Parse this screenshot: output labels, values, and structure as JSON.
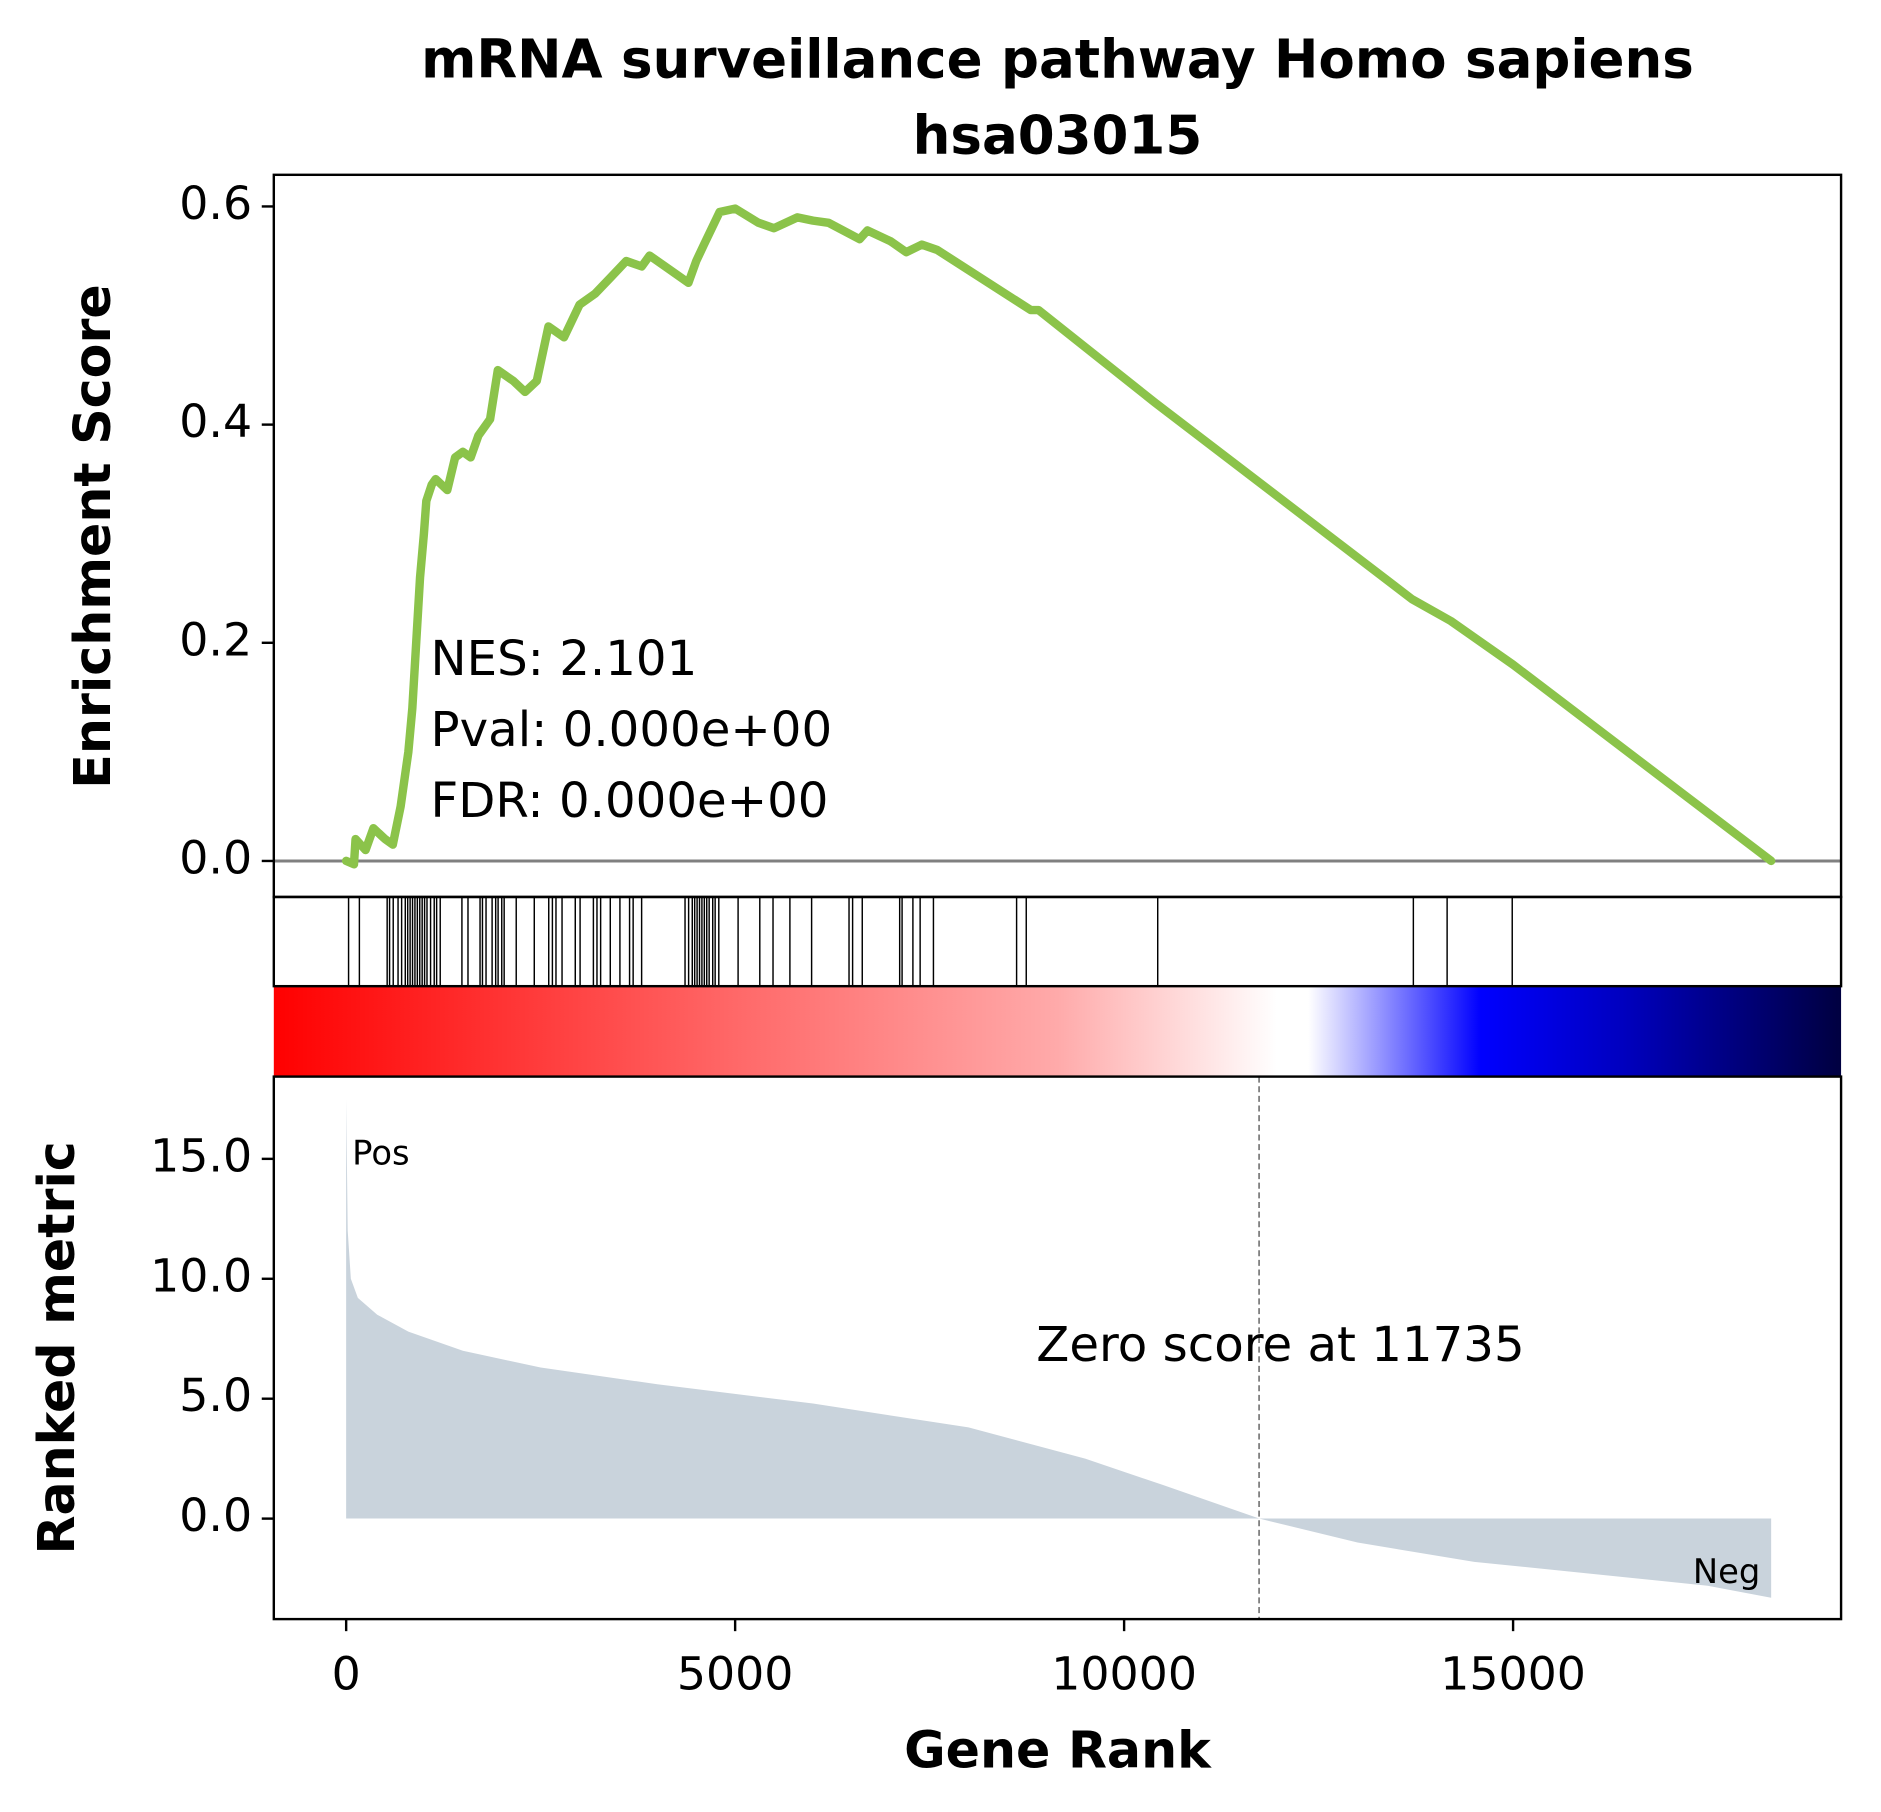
{
  "chart_data": [
    {
      "type": "line",
      "title": [
        "mRNA surveillance pathway Homo sapiens",
        "hsa03015"
      ],
      "ylabel": "Enrichment Score",
      "color": "#8bc34a",
      "x": [
        0,
        100,
        120,
        250,
        350,
        500,
        600,
        700,
        800,
        850,
        900,
        950,
        1000,
        1030,
        1100,
        1150,
        1300,
        1400,
        1500,
        1600,
        1700,
        1850,
        1950,
        2150,
        2300,
        2450,
        2600,
        2800,
        3000,
        3200,
        3400,
        3600,
        3800,
        3900,
        4100,
        4400,
        4500,
        4600,
        4800,
        5000,
        5300,
        5500,
        5800,
        6000,
        6200,
        6600,
        6700,
        7000,
        7200,
        7400,
        7600,
        8800,
        8900,
        10400,
        13700,
        14200,
        15000,
        18317
      ],
      "values": [
        0,
        -0.003,
        0.02,
        0.01,
        0.03,
        0.02,
        0.015,
        0.05,
        0.1,
        0.14,
        0.2,
        0.26,
        0.3,
        0.33,
        0.345,
        0.35,
        0.34,
        0.37,
        0.375,
        0.37,
        0.39,
        0.405,
        0.45,
        0.44,
        0.43,
        0.44,
        0.49,
        0.48,
        0.51,
        0.52,
        0.535,
        0.55,
        0.545,
        0.555,
        0.545,
        0.53,
        0.55,
        0.565,
        0.595,
        0.598,
        0.585,
        0.58,
        0.59,
        0.587,
        0.585,
        0.57,
        0.578,
        0.568,
        0.558,
        0.565,
        0.56,
        0.505,
        0.505,
        0.42,
        0.24,
        0.22,
        0.18,
        0
      ],
      "hline": 0,
      "annotations": [
        "NES: 2.101",
        "Pval: 0.000e+00",
        "FDR: 0.000e+00"
      ],
      "xlim": [
        -930,
        19216
      ],
      "ylim": [
        -0.033,
        0.629
      ],
      "yticks": [
        {
          "value": 0,
          "label": "0.0"
        },
        0.2,
        0.4,
        0.6
      ]
    },
    {
      "type": "hits",
      "x": [
        31,
        170,
        527,
        558,
        605,
        667,
        713,
        760,
        791,
        822,
        853,
        884,
        915,
        946,
        977,
        1008,
        1039,
        1085,
        1132,
        1163,
        1209,
        1488,
        1566,
        1721,
        1752,
        1798,
        1876,
        1922,
        1953,
        2000,
        2031,
        2186,
        2418,
        2604,
        2651,
        2697,
        2775,
        2945,
        3007,
        3178,
        3224,
        3271,
        3395,
        3519,
        3643,
        3689,
        3798,
        4356,
        4402,
        4449,
        4480,
        4511,
        4542,
        4573,
        4604,
        4635,
        4666,
        4712,
        4743,
        4790,
        5038,
        5317,
        5487,
        5704,
        5983,
        6464,
        6510,
        6634,
        7115,
        7146,
        7285,
        7378,
        7549,
        8618,
        8742,
        10432,
        13718,
        14152,
        14989
      ],
      "color": "#000000",
      "xlim": [
        -930,
        19216
      ]
    },
    {
      "type": "area",
      "ylabel": "Ranked metric",
      "xlabel": "Gene Rank",
      "color": "#c9d3dc",
      "x": [
        0,
        20,
        60,
        150,
        400,
        800,
        1500,
        2500,
        4000,
        6000,
        8000,
        9500,
        10500,
        11735,
        13000,
        14500,
        16000,
        17500,
        18317
      ],
      "values": [
        17.5,
        12,
        10,
        9.2,
        8.5,
        7.8,
        7,
        6.3,
        5.6,
        4.8,
        3.8,
        2.5,
        1.4,
        0,
        -1,
        -1.8,
        -2.3,
        -2.8,
        -3.3
      ],
      "vline": 11735,
      "annotations": [
        "Zero score at 11735",
        "Pos",
        "Neg"
      ],
      "annotation_colors": [
        "#000000",
        "#ff0000",
        "#0000ff"
      ],
      "xlim": [
        -930,
        19216
      ],
      "ylim": [
        -4.19,
        18.43
      ],
      "xticks": [
        0,
        5000,
        10000,
        15000
      ],
      "yticks": [
        {
          "value": 0,
          "label": "0.0"
        },
        {
          "value": 5,
          "label": "5.0"
        },
        {
          "value": 10,
          "label": "10.0"
        },
        {
          "value": 15,
          "label": "15.0"
        }
      ]
    }
  ]
}
